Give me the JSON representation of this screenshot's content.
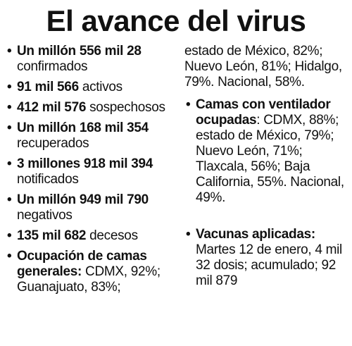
{
  "title": "El avance del virus",
  "left_items": [
    {
      "bold": "Un millón 556 mil 28",
      "text": " confirmados"
    },
    {
      "bold": "91 mil 566",
      "text": " activos"
    },
    {
      "bold": "412 mil 576",
      "text": " sospechosos"
    },
    {
      "bold": "Un millón 168 mil 354",
      "text": " recuperados"
    },
    {
      "bold": "3 millones 918 mil 394",
      "text": " notificados"
    },
    {
      "bold": "Un millón 949 mil 790",
      "text": " negativos"
    },
    {
      "bold": "135 mil 682",
      "text": " decesos"
    },
    {
      "bold": "Ocupación de camas generales:",
      "text": " CDMX, 92%; Guanajuato, 83%;"
    }
  ],
  "right_continuation": "estado de México, 82%; Nuevo León, 81%; Hidalgo, 79%. Nacional, 58%.",
  "right_items": [
    {
      "bold": "Camas con ventilador ocupadas",
      "text": ": CDMX, 88%; estado de México, 79%; Nuevo León, 71%; Tlaxcala, 56%; Baja California, 55%. Nacional, 49%."
    },
    {
      "bold": "Vacunas aplicadas:",
      "text": " Martes 12 de enero, 4 mil 32 dosis; acumulado; 92 mil 879"
    }
  ]
}
